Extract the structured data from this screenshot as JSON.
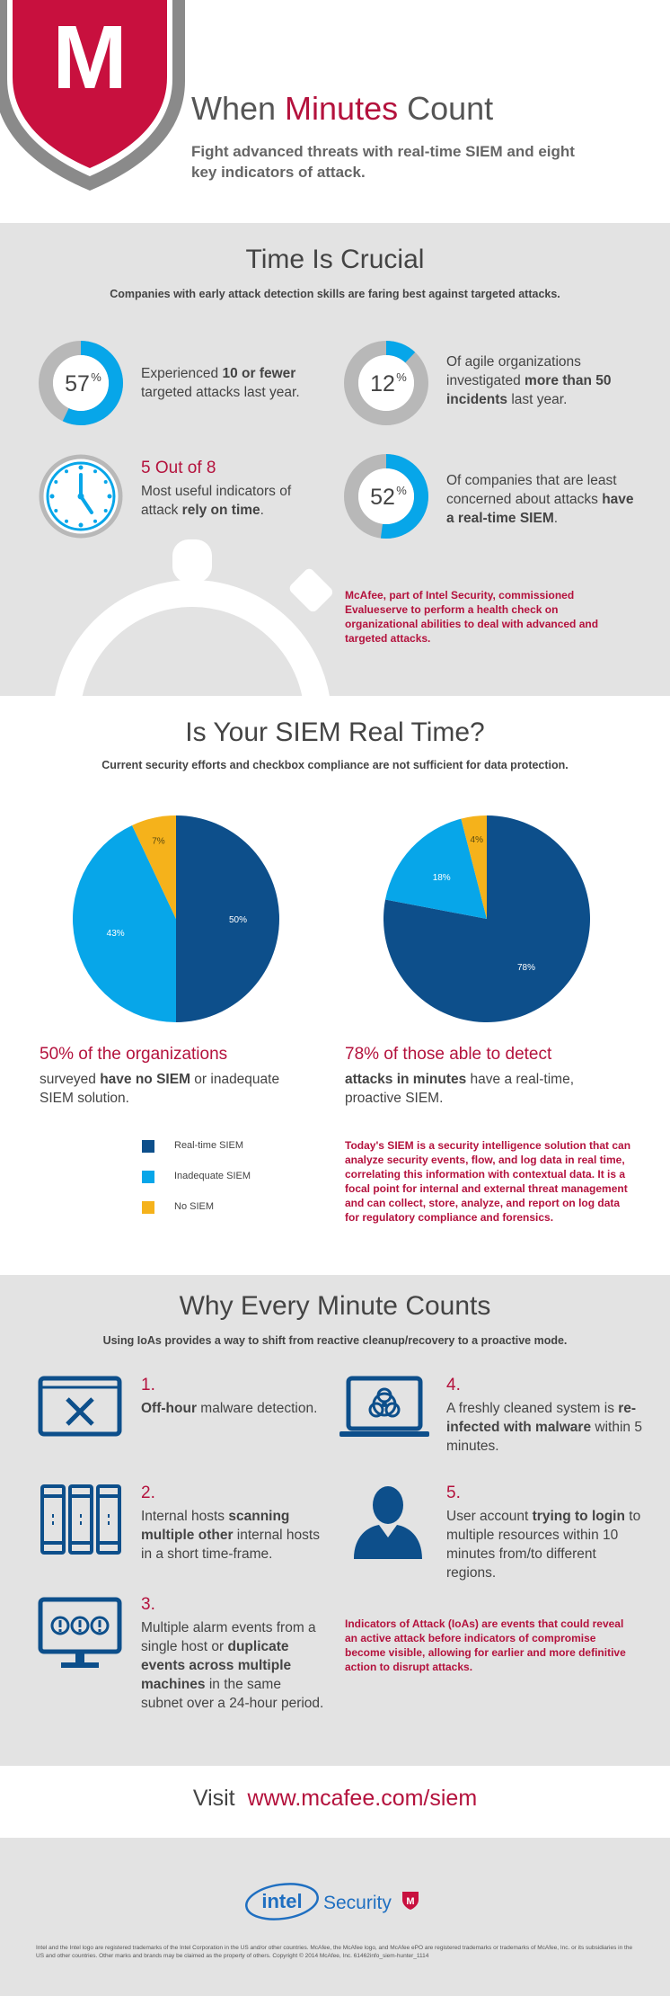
{
  "header": {
    "logo_letter": "M",
    "title_before": "When ",
    "title_highlight": "Minutes",
    "title_after": " Count",
    "subtitle": "Fight advanced threats with real-time SIEM and eight key indicators of attack."
  },
  "time_crucial": {
    "title": "Time Is Crucial",
    "subtitle": "Companies with early attack detection skills are faring best against targeted attacks.",
    "stat1": {
      "value": "57",
      "unit": "%",
      "fraction": 0.57,
      "pre": "Experienced ",
      "bold": "10 or fewer",
      "post": " targeted attacks last year."
    },
    "stat2": {
      "value": "12",
      "unit": "%",
      "fraction": 0.12,
      "pre": "Of agile organizations investigated ",
      "bold": "more than 50 incidents",
      "post": " last year."
    },
    "stat3": {
      "heading": "5 Out of 8",
      "pre": "Most useful indicators of attack ",
      "bold": "rely on time",
      "post": "."
    },
    "stat4": {
      "value": "52",
      "unit": "%",
      "fraction": 0.52,
      "pre": "Of companies that are least concerned about attacks ",
      "bold": "have a real-time SIEM",
      "post": "."
    },
    "note": "McAfee, part of Intel Security, commissioned Evalueserve to perform a health check on organizational abilities to deal with advanced and targeted attacks."
  },
  "siem_real_time": {
    "title": "Is Your SIEM Real Time?",
    "subtitle": "Current security efforts and checkbox compliance are not sufficient for data protection.",
    "caption1": {
      "heading": "50% of the organizations",
      "pre": "surveyed ",
      "bold": "have no SIEM",
      "post": " or inadequate SIEM solution."
    },
    "caption2": {
      "heading": "78% of those able to detect",
      "bold": "attacks in minutes",
      "post": " have a real-time, proactive SIEM."
    },
    "legend": [
      "Real-time SIEM",
      "Inadequate SIEM",
      "No SIEM"
    ],
    "note": "Today's SIEM is a security intelligence solution that can analyze security events, flow, and log data in real time, correlating this information with contextual data. It is a focal point for internal and external threat management and can collect, store, analyze, and report on log data for regulatory compliance and forensics."
  },
  "chart_data": [
    {
      "type": "pie",
      "categories": [
        "Real-time SIEM",
        "Inadequate SIEM",
        "No SIEM"
      ],
      "values": [
        50,
        43,
        7
      ],
      "labels": [
        "50%",
        "43%",
        "7%"
      ]
    },
    {
      "type": "pie",
      "categories": [
        "Real-time SIEM",
        "Inadequate SIEM",
        "No SIEM"
      ],
      "values": [
        78,
        18,
        4
      ],
      "labels": [
        "78%",
        "18%",
        "4%"
      ]
    }
  ],
  "every_minute": {
    "title": "Why Every Minute Counts",
    "subtitle": "Using IoAs provides a way to shift from reactive cleanup/recovery to a proactive mode.",
    "items": [
      {
        "num": "1.",
        "bold1": "Off-hour",
        "text1": " malware detection.",
        "bold2": "",
        "text2": ""
      },
      {
        "num": "2.",
        "pre": "Internal hosts ",
        "bold1": "scanning multiple other",
        "text1": " internal hosts in a short time-frame.",
        "bold2": "",
        "text2": ""
      },
      {
        "num": "3.",
        "pre": "Multiple alarm events from a single host or ",
        "bold1": "duplicate events across multiple machines",
        "text1": " in the same subnet over a 24-hour period.",
        "bold2": "",
        "text2": ""
      },
      {
        "num": "4.",
        "pre": "A freshly cleaned system is ",
        "bold1": "re-infected with malware",
        "text1": " within 5 minutes.",
        "bold2": "",
        "text2": ""
      },
      {
        "num": "5.",
        "pre": "User account ",
        "bold1": "trying to login",
        "text1": " to multiple resources within 10 minutes from/to different regions.",
        "bold2": "",
        "text2": ""
      }
    ],
    "note": "Indicators of Attack (IoAs) are events that could reveal an active attack before indicators of compromise become visible, allowing for earlier and more definitive action to disrupt attacks."
  },
  "visit": {
    "label": "Visit",
    "url": "www.mcafee.com/siem"
  },
  "footer": {
    "intel": "intel",
    "security": "Security",
    "legal": "Intel and the Intel logo are registered trademarks of the Intel Corporation in the US and/or other countries. McAfee, the McAfee logo, and McAfee ePO are registered trademarks or trademarks of McAfee, Inc. or its subsidiaries in the US and other countries. Other marks and brands may be claimed as the property of others. Copyright © 2014 McAfee, Inc. 61462info_siem-hunter_1114"
  },
  "colors": {
    "red": "#b4123d",
    "dark_blue": "#0d4f8b",
    "light_blue": "#07a6e9",
    "gold": "#f5b21b",
    "gray": "#b8b8b8"
  }
}
